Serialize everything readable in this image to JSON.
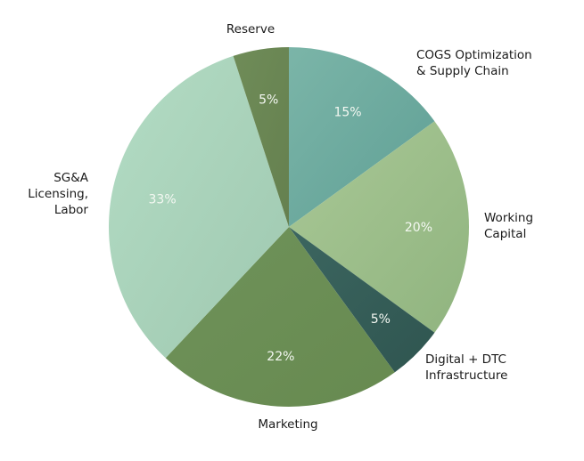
{
  "chart_data": {
    "type": "pie",
    "title": "",
    "start": "top",
    "direction": "clockwise",
    "slices": [
      {
        "label": [
          "COGS Optimization",
          "& Supply Chain"
        ],
        "value": 15,
        "display": "15%",
        "color": "#5f9f95",
        "color2": "#7bb5a8"
      },
      {
        "label": [
          "Working",
          "Capital"
        ],
        "value": 20,
        "display": "20%",
        "color": "#90b47f",
        "color2": "#a9c896"
      },
      {
        "label": [
          "Digital + DTC",
          "Infrastructure"
        ],
        "value": 5,
        "display": "5%",
        "color": "#2f5550",
        "color2": "#3c6660"
      },
      {
        "label": [
          "Marketing"
        ],
        "value": 22,
        "display": "22%",
        "color": "#678a50",
        "color2": "#6f925a"
      },
      {
        "label": [
          "SG&A",
          "Licensing,",
          "Labor"
        ],
        "value": 33,
        "display": "33%",
        "color": "#9fc8b0",
        "color2": "#b3dcc4"
      },
      {
        "label": [
          "Reserve"
        ],
        "value": 5,
        "display": "5%",
        "color": "#65804f",
        "color2": "#6f8c58"
      }
    ]
  }
}
